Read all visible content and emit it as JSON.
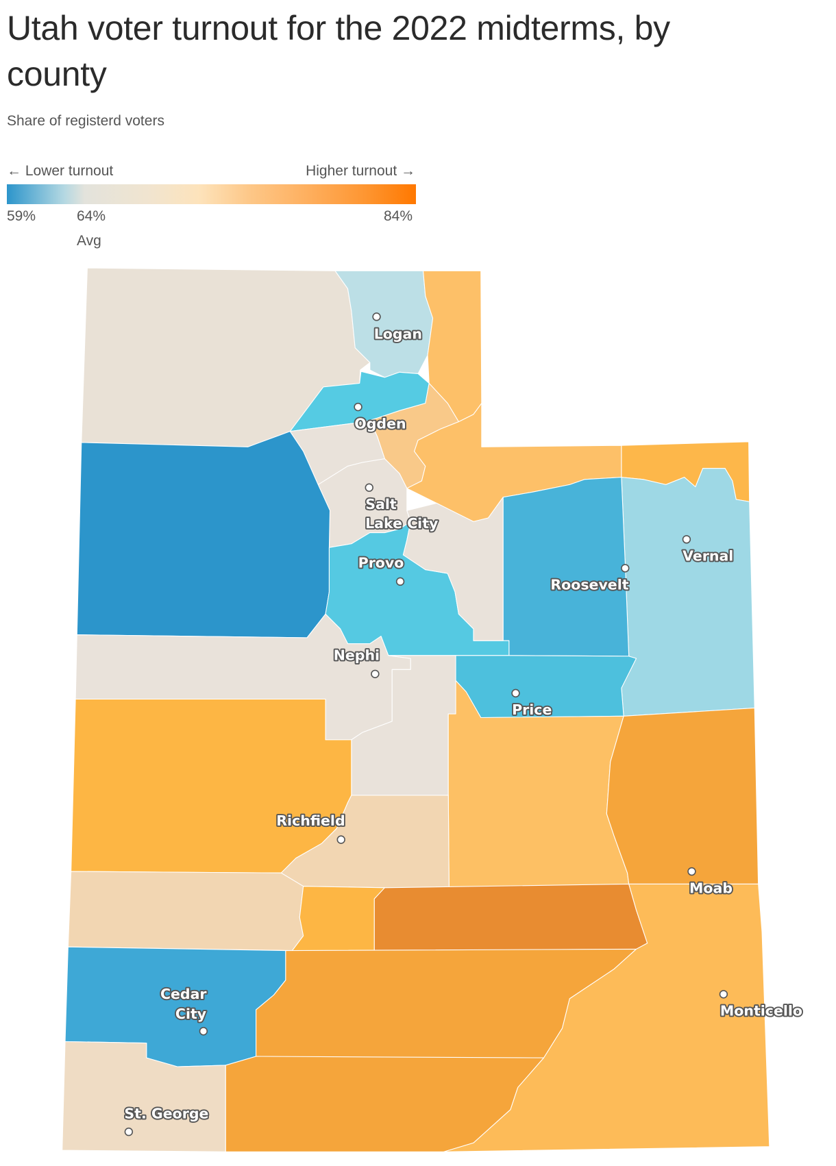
{
  "title": "Utah voter turnout for the 2022 midterms, by county",
  "subtitle": "Share of registerd voters",
  "legend": {
    "low_label": "← Lower turnout",
    "high_label": "Higher turnout →",
    "min": "59%",
    "avg": "64%",
    "avg_label": "Avg",
    "max": "84%",
    "scale_colors": [
      "#2c95cb",
      "#e3e3dc",
      "#fde3bb",
      "#ff7800"
    ]
  },
  "chart_data": {
    "type": "choropleth",
    "value_range": [
      59,
      84
    ],
    "average": 64,
    "region_fills": {
      "box-elder": "#e9e1d6",
      "cache": "#bcdfe6",
      "rich": "#fdc068",
      "weber": "#55cbe3",
      "morgan": "#f9c989",
      "davis": "#e9e2da",
      "summit": "#fdc068",
      "daggett": "#fdb74a",
      "uintah": "#9ed8e5",
      "duchesne": "#48b3d9",
      "salt-lake": "#e9e2da",
      "tooele": "#2c95cb",
      "utah": "#55c9e2",
      "wasatch": "#e9e2da",
      "juab": "#e9e2da",
      "sanpete": "#e9e2da",
      "carbon": "#4dc0dd",
      "emery": "#fdc064",
      "grand": "#f5a53b",
      "millard": "#fdb644",
      "sevier": "#f2d6b2",
      "beaver": "#f2d6b2",
      "piute": "#fdb644",
      "wayne": "#e88c31",
      "garfield": "#f5a53b",
      "iron": "#3ea8d6",
      "washington": "#efdcc4",
      "kane": "#f5a53b",
      "san-juan": "#fdbb58"
    }
  },
  "cities": [
    {
      "name": "Logan"
    },
    {
      "name": "Ogden"
    },
    {
      "name": "Salt Lake City",
      "lines": [
        "Salt",
        "Lake City"
      ]
    },
    {
      "name": "Provo"
    },
    {
      "name": "Roosevelt"
    },
    {
      "name": "Vernal"
    },
    {
      "name": "Nephi"
    },
    {
      "name": "Price"
    },
    {
      "name": "Richfield"
    },
    {
      "name": "Moab"
    },
    {
      "name": "Cedar City",
      "lines": [
        "Cedar",
        "City"
      ]
    },
    {
      "name": "Monticello"
    },
    {
      "name": "St. George"
    }
  ]
}
